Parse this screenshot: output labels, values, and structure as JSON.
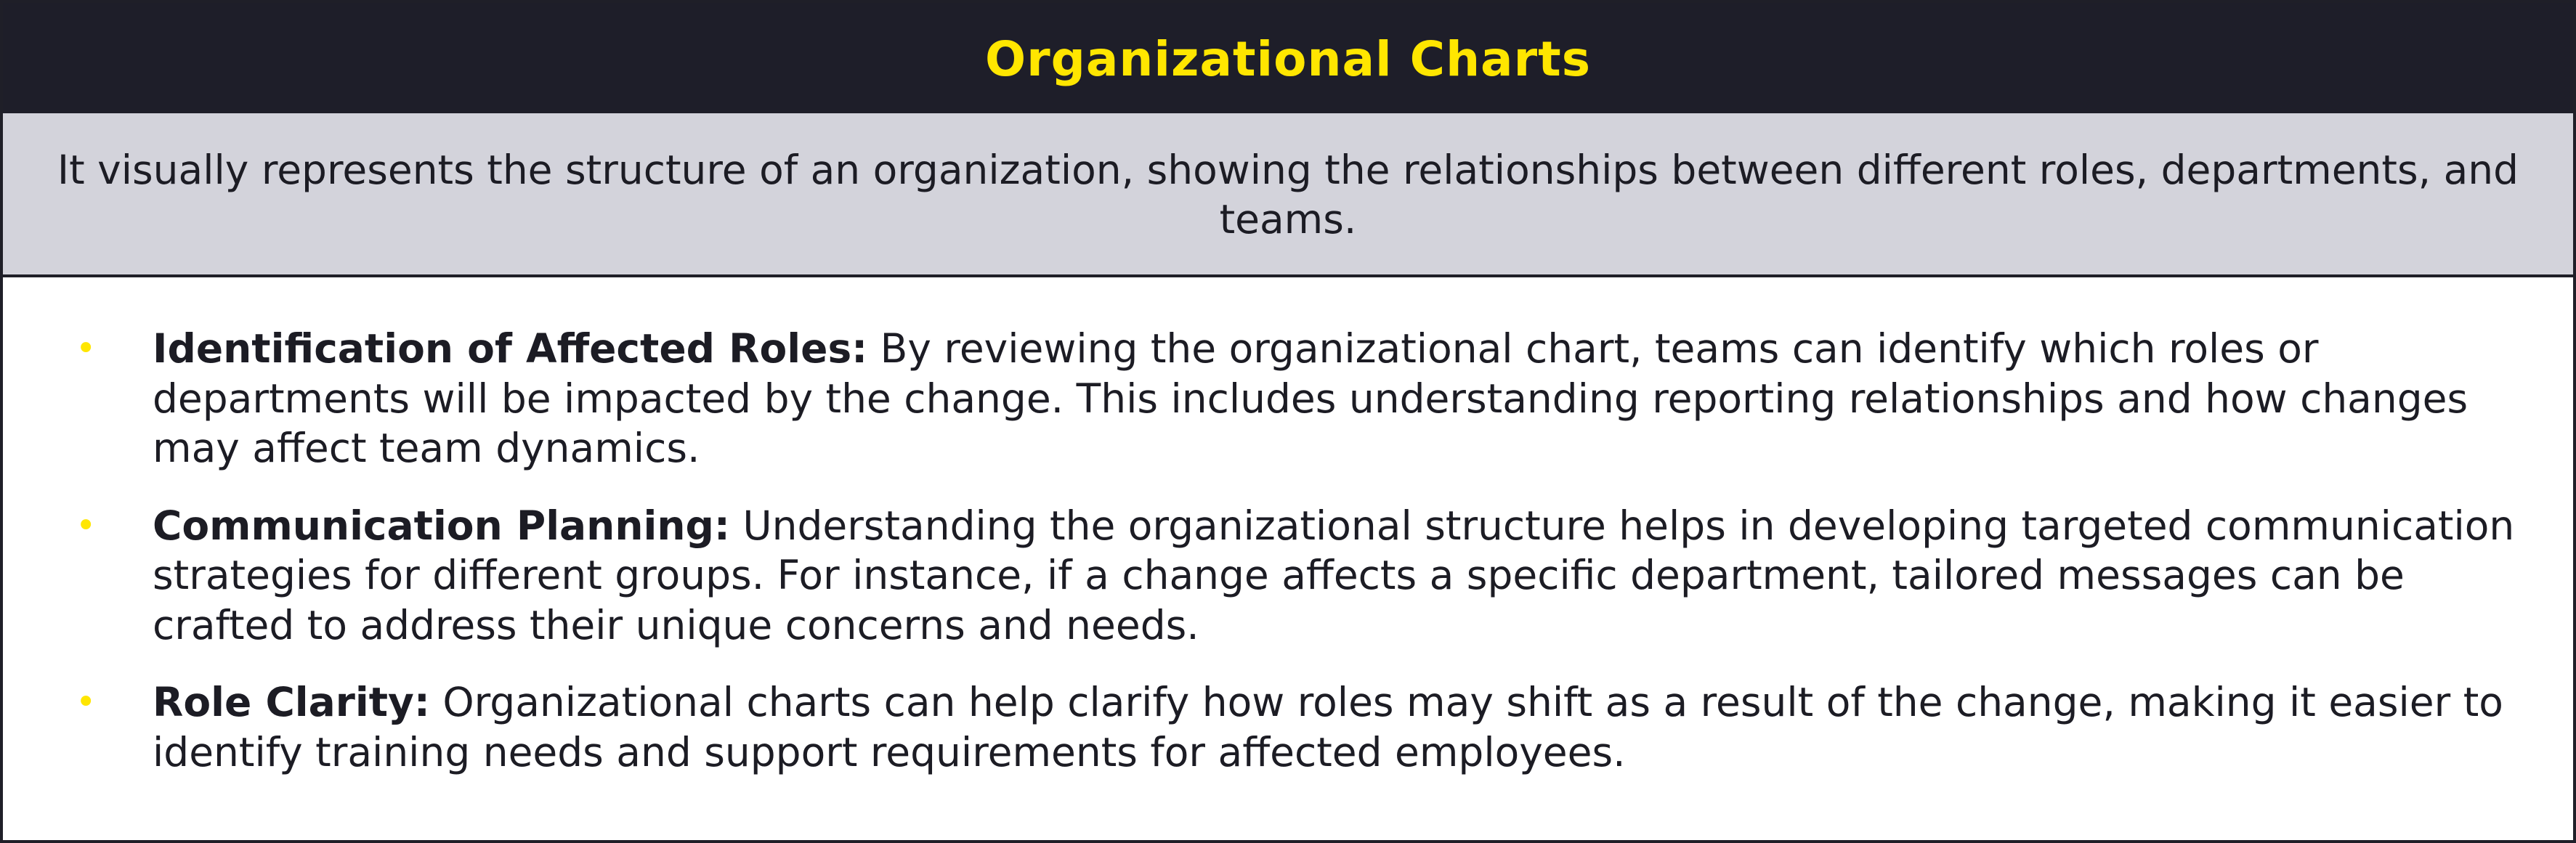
{
  "header": {
    "title": "Organizational Charts"
  },
  "summary": {
    "text": "It visually represents the structure of an organization, showing the relationships between different roles, departments, and teams."
  },
  "bullets": [
    {
      "term": "Identification of Affected Roles:",
      "text": "By reviewing the organizational chart, teams can identify which roles or departments will be impacted by the change. This includes understanding reporting relationships and how changes may affect team dynamics."
    },
    {
      "term": "Communication Planning:",
      "text": "Understanding the organizational structure helps in developing targeted communication strategies for different groups. For instance, if a change affects a specific department, tailored messages can be crafted to address their unique concerns and needs."
    },
    {
      "term": "Role Clarity:",
      "text": "Organizational charts can help clarify how roles may shift as a result of the change, making it easier to identify training needs and support requirements for affected employees."
    }
  ],
  "bullet_glyph": "•",
  "colors": {
    "header_bg": "#1e1e29",
    "accent": "#ffe600",
    "summary_bg": "#d3d3db",
    "text": "#1c1c24"
  }
}
